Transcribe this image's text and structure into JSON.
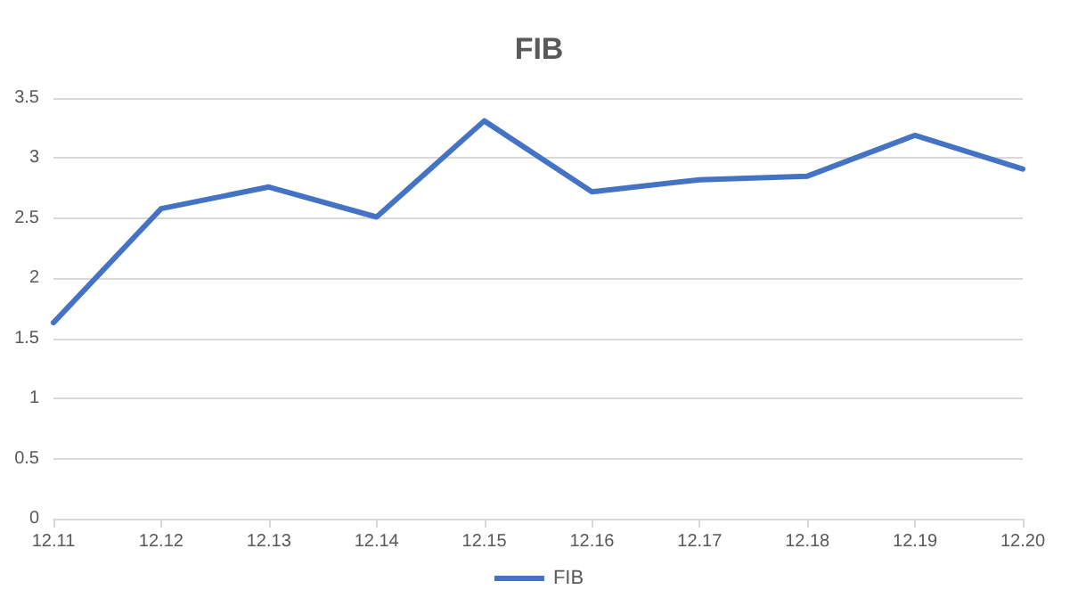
{
  "chart_data": {
    "type": "line",
    "title": "FIB",
    "categories": [
      "12.11",
      "12.12",
      "12.13",
      "12.14",
      "12.15",
      "12.16",
      "12.17",
      "12.18",
      "12.19",
      "12.20"
    ],
    "series": [
      {
        "name": "FIB",
        "color": "#4472c4",
        "values": [
          1.63,
          2.58,
          2.76,
          2.51,
          3.31,
          2.72,
          2.82,
          2.85,
          3.19,
          2.91
        ]
      }
    ],
    "ylim": [
      0,
      3.5
    ],
    "yticks": [
      0,
      0.5,
      1,
      1.5,
      2,
      2.5,
      3,
      3.5
    ],
    "grid": "y",
    "legend": "bottom",
    "marker": "none",
    "line_style": "solid"
  }
}
